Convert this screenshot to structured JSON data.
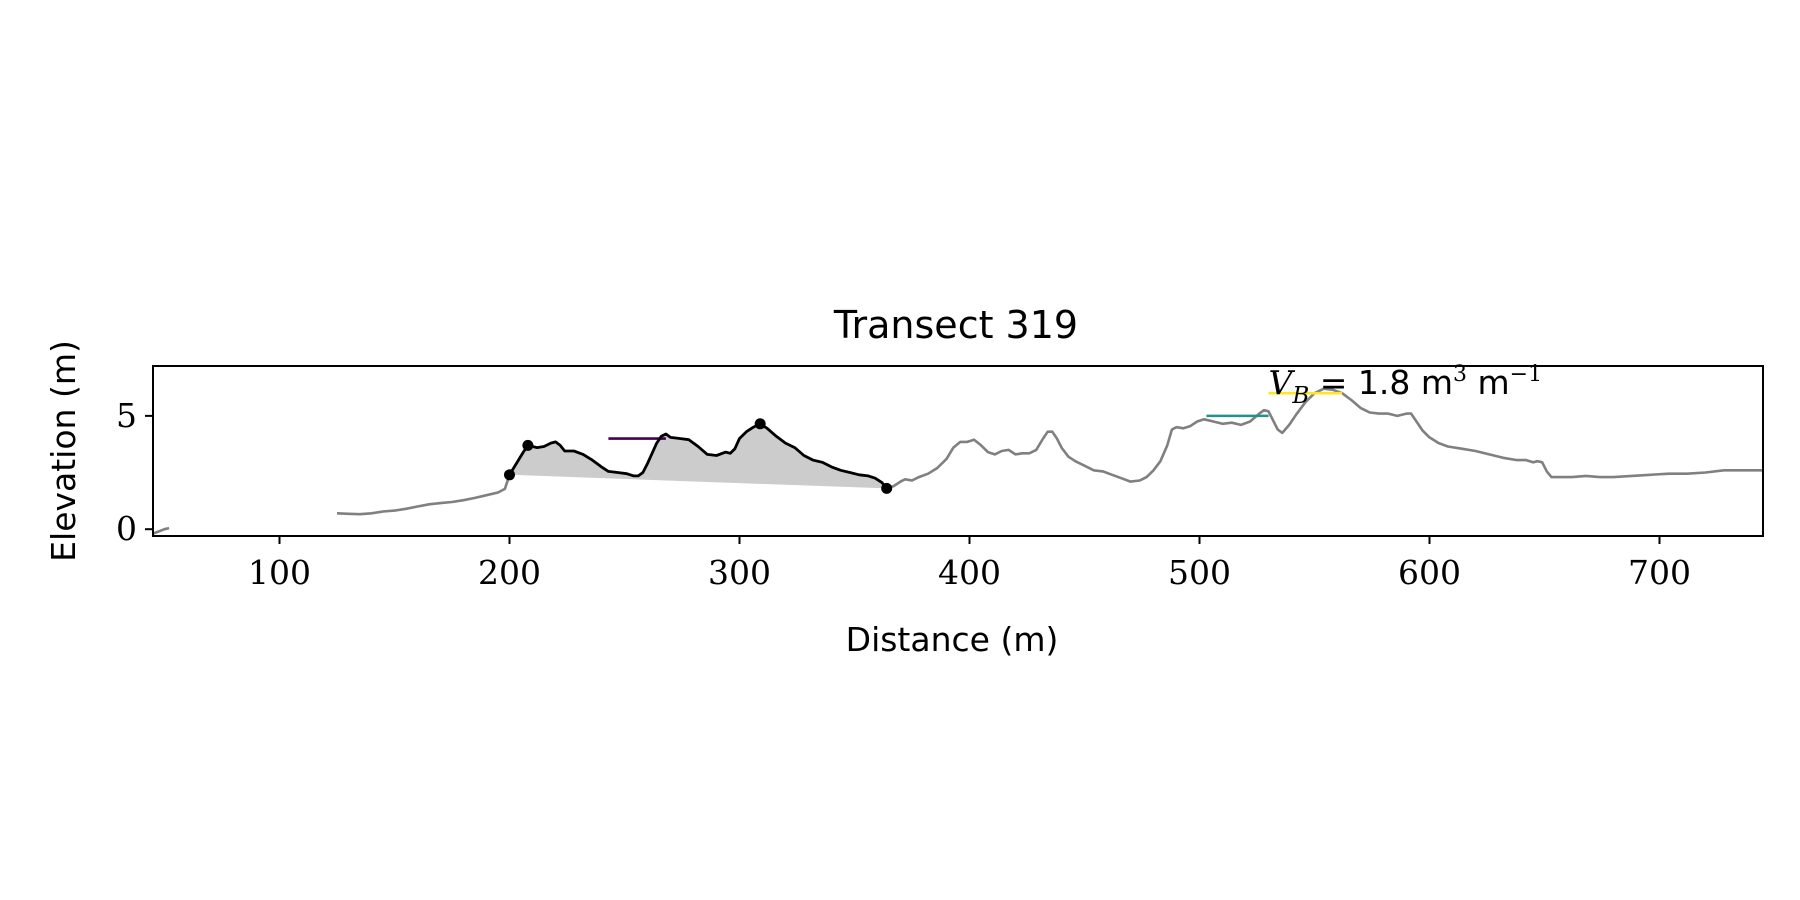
{
  "chart_data": {
    "type": "line",
    "title": "Transect 319",
    "xlabel": "Distance (m)",
    "ylabel": "Elevation (m)",
    "xlim": [
      45,
      745
    ],
    "ylim": [
      -0.3,
      7.2
    ],
    "xticks": [
      100,
      200,
      300,
      400,
      500,
      600,
      700
    ],
    "yticks": [
      0,
      5
    ],
    "grid": false,
    "legend": "none",
    "annotation": {
      "text_main": "V",
      "text_sub": "B",
      "text_rest": " = 1.8 m",
      "text_sup1": "3",
      "text_mid": " m",
      "text_sup2": "−1",
      "x": 530,
      "y": 6.5
    },
    "colors": {
      "profile": "#808080",
      "dune": "#000000",
      "fill": "#cccccc",
      "level_purple": "#440154",
      "level_teal": "#21918c",
      "level_yellow": "#fde725"
    },
    "series": [
      {
        "role": "profile",
        "segments": [
          [
            [
              45,
              -0.2
            ],
            [
              50,
              0.0
            ],
            [
              52,
              0.05
            ]
          ],
          [
            [
              125,
              0.7
            ],
            [
              130,
              0.68
            ],
            [
              135,
              0.66
            ],
            [
              140,
              0.7
            ],
            [
              145,
              0.78
            ],
            [
              150,
              0.82
            ],
            [
              155,
              0.9
            ],
            [
              160,
              1.0
            ],
            [
              165,
              1.1
            ],
            [
              170,
              1.15
            ],
            [
              175,
              1.2
            ],
            [
              180,
              1.28
            ],
            [
              185,
              1.38
            ],
            [
              190,
              1.5
            ],
            [
              195,
              1.62
            ],
            [
              198,
              1.78
            ],
            [
              200,
              2.4
            ]
          ],
          [
            [
              364,
              1.8
            ],
            [
              367,
              1.9
            ],
            [
              370,
              2.1
            ],
            [
              372,
              2.2
            ],
            [
              375,
              2.15
            ],
            [
              378,
              2.3
            ],
            [
              382,
              2.45
            ],
            [
              386,
              2.7
            ],
            [
              390,
              3.1
            ],
            [
              393,
              3.6
            ],
            [
              396,
              3.85
            ],
            [
              399,
              3.85
            ],
            [
              402,
              3.95
            ],
            [
              405,
              3.7
            ],
            [
              408,
              3.4
            ],
            [
              411,
              3.3
            ],
            [
              414,
              3.45
            ],
            [
              417,
              3.5
            ],
            [
              420,
              3.3
            ],
            [
              423,
              3.35
            ],
            [
              426,
              3.35
            ],
            [
              429,
              3.5
            ],
            [
              432,
              4.0
            ],
            [
              434,
              4.3
            ],
            [
              436,
              4.3
            ],
            [
              438,
              4.0
            ],
            [
              440,
              3.6
            ],
            [
              443,
              3.2
            ],
            [
              446,
              3.0
            ],
            [
              450,
              2.8
            ],
            [
              454,
              2.6
            ],
            [
              458,
              2.55
            ],
            [
              462,
              2.4
            ],
            [
              466,
              2.25
            ],
            [
              470,
              2.1
            ],
            [
              474,
              2.15
            ],
            [
              477,
              2.3
            ],
            [
              480,
              2.6
            ],
            [
              483,
              3.0
            ],
            [
              486,
              3.7
            ],
            [
              488,
              4.4
            ],
            [
              490,
              4.5
            ],
            [
              493,
              4.45
            ],
            [
              496,
              4.55
            ],
            [
              499,
              4.75
            ],
            [
              502,
              4.85
            ],
            [
              506,
              4.75
            ],
            [
              510,
              4.65
            ],
            [
              514,
              4.7
            ],
            [
              518,
              4.6
            ],
            [
              522,
              4.75
            ],
            [
              526,
              5.1
            ],
            [
              528,
              5.25
            ],
            [
              530,
              5.2
            ],
            [
              532,
              4.8
            ],
            [
              534,
              4.4
            ],
            [
              536,
              4.25
            ],
            [
              539,
              4.6
            ],
            [
              542,
              5.05
            ],
            [
              546,
              5.6
            ],
            [
              550,
              6.0
            ],
            [
              554,
              6.2
            ],
            [
              558,
              6.15
            ],
            [
              562,
              6.0
            ],
            [
              566,
              5.7
            ],
            [
              570,
              5.35
            ],
            [
              574,
              5.15
            ],
            [
              578,
              5.1
            ],
            [
              582,
              5.1
            ],
            [
              586,
              5.0
            ],
            [
              590,
              5.1
            ],
            [
              592,
              5.1
            ],
            [
              594,
              4.8
            ],
            [
              597,
              4.35
            ],
            [
              600,
              4.05
            ],
            [
              604,
              3.8
            ],
            [
              608,
              3.65
            ],
            [
              614,
              3.55
            ],
            [
              620,
              3.45
            ],
            [
              626,
              3.3
            ],
            [
              632,
              3.15
            ],
            [
              638,
              3.05
            ],
            [
              642,
              3.05
            ],
            [
              645,
              2.95
            ],
            [
              647,
              3.0
            ],
            [
              649,
              2.95
            ],
            [
              651,
              2.55
            ],
            [
              653,
              2.3
            ],
            [
              657,
              2.3
            ],
            [
              662,
              2.3
            ],
            [
              668,
              2.35
            ],
            [
              674,
              2.3
            ],
            [
              680,
              2.3
            ],
            [
              688,
              2.35
            ],
            [
              696,
              2.4
            ],
            [
              704,
              2.45
            ],
            [
              712,
              2.45
            ],
            [
              720,
              2.5
            ],
            [
              728,
              2.6
            ],
            [
              736,
              2.6
            ],
            [
              745,
              2.6
            ]
          ]
        ]
      },
      {
        "role": "dune",
        "points": [
          [
            200,
            2.4
          ],
          [
            203,
            2.9
          ],
          [
            206,
            3.4
          ],
          [
            208,
            3.7
          ],
          [
            212,
            3.6
          ],
          [
            215,
            3.65
          ],
          [
            218,
            3.8
          ],
          [
            220,
            3.85
          ],
          [
            222,
            3.7
          ],
          [
            224,
            3.45
          ],
          [
            228,
            3.45
          ],
          [
            232,
            3.3
          ],
          [
            236,
            3.05
          ],
          [
            240,
            2.75
          ],
          [
            243,
            2.55
          ],
          [
            247,
            2.5
          ],
          [
            251,
            2.45
          ],
          [
            254,
            2.35
          ],
          [
            256,
            2.35
          ],
          [
            258,
            2.5
          ],
          [
            260,
            2.9
          ],
          [
            262,
            3.35
          ],
          [
            264,
            3.8
          ],
          [
            266,
            4.1
          ],
          [
            268,
            4.2
          ],
          [
            270,
            4.05
          ],
          [
            274,
            4.0
          ],
          [
            278,
            3.95
          ],
          [
            282,
            3.65
          ],
          [
            286,
            3.3
          ],
          [
            290,
            3.25
          ],
          [
            294,
            3.4
          ],
          [
            296,
            3.35
          ],
          [
            298,
            3.55
          ],
          [
            300,
            4.0
          ],
          [
            303,
            4.3
          ],
          [
            306,
            4.5
          ],
          [
            309,
            4.65
          ],
          [
            312,
            4.45
          ],
          [
            316,
            4.1
          ],
          [
            320,
            3.8
          ],
          [
            324,
            3.6
          ],
          [
            328,
            3.25
          ],
          [
            332,
            3.05
          ],
          [
            336,
            2.95
          ],
          [
            340,
            2.75
          ],
          [
            344,
            2.6
          ],
          [
            348,
            2.5
          ],
          [
            352,
            2.4
          ],
          [
            356,
            2.35
          ],
          [
            359,
            2.25
          ],
          [
            362,
            2.05
          ],
          [
            364,
            1.8
          ]
        ],
        "markers": [
          [
            200,
            2.4
          ],
          [
            208,
            3.7
          ],
          [
            309,
            4.65
          ],
          [
            364,
            1.8
          ]
        ]
      }
    ],
    "fill_region": {
      "baseline": [
        [
          200,
          2.4
        ],
        [
          364,
          1.8
        ]
      ]
    },
    "level_lines": [
      {
        "color_key": "level_purple",
        "x": [
          243,
          268
        ],
        "y": 4.0
      },
      {
        "color_key": "level_teal",
        "x": [
          503,
          530
        ],
        "y": 5.0
      },
      {
        "color_key": "level_yellow",
        "x": [
          530,
          562
        ],
        "y": 6.0
      }
    ]
  }
}
